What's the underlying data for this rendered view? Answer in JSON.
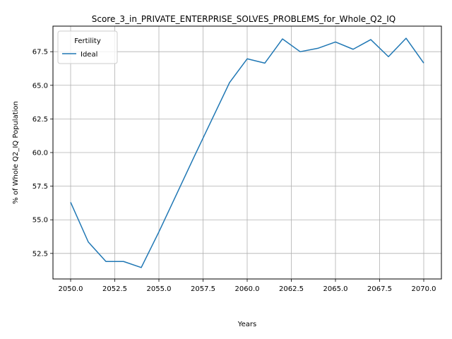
{
  "chart_data": {
    "type": "line",
    "title": "Score_3_in_PRIVATE_ENTERPRISE_SOLVES_PROBLEMS_for_Whole_Q2_IQ",
    "xlabel": "Years",
    "ylabel": "% of Whole Q2_IQ Population",
    "xlim": [
      2049.0,
      2071.0
    ],
    "ylim": [
      50.6,
      69.4
    ],
    "xticks": [
      2050.0,
      2052.5,
      2055.0,
      2057.5,
      2060.0,
      2062.5,
      2065.0,
      2067.5,
      2070.0
    ],
    "xtick_labels": [
      "2050.0",
      "2052.5",
      "2055.0",
      "2057.5",
      "2060.0",
      "2062.5",
      "2065.0",
      "2067.5",
      "2070.0"
    ],
    "yticks": [
      52.5,
      55.0,
      57.5,
      60.0,
      62.5,
      65.0,
      67.5
    ],
    "ytick_labels": [
      "52.5",
      "55.0",
      "57.5",
      "60.0",
      "62.5",
      "65.0",
      "67.5"
    ],
    "grid": true,
    "legend": {
      "title": "Fertility",
      "placement": "top-left"
    },
    "series": [
      {
        "name": "Ideal",
        "color": "#1f77b4",
        "x": [
          2050,
          2051,
          2052,
          2053,
          2054,
          2055,
          2056,
          2057,
          2058,
          2059,
          2060,
          2061,
          2062,
          2063,
          2064,
          2065,
          2066,
          2067,
          2068,
          2069,
          2070
        ],
        "y": [
          56.3,
          53.35,
          51.9,
          51.9,
          51.45,
          54.1,
          56.9,
          59.7,
          62.45,
          65.2,
          66.97,
          66.65,
          68.45,
          67.5,
          67.75,
          68.22,
          67.68,
          68.4,
          67.13,
          68.5,
          66.65
        ]
      }
    ]
  }
}
